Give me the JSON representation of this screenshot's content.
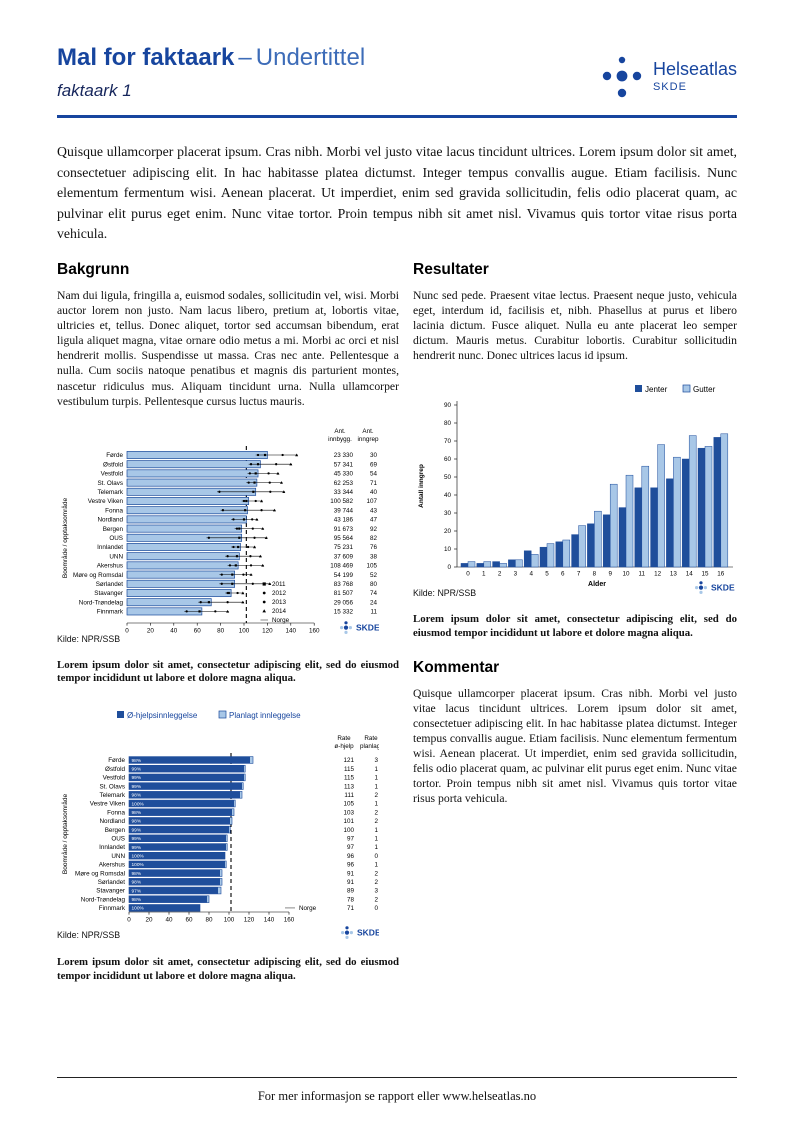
{
  "page": {
    "header": {
      "title_main": "Mal for faktaark",
      "title_sep": "–",
      "title_sub": "Undertittel",
      "subtitle": "faktaark 1",
      "logo": {
        "name": "Helseatlas",
        "org": "SKDE"
      }
    },
    "intro": "Quisque ullamcorper placerat ipsum. Cras nibh. Morbi vel justo vitae lacus tincidunt ultrices. Lorem ipsum dolor sit amet, consectetuer adipiscing elit. In hac habitasse platea dictumst. Integer tempus convallis augue. Etiam facilisis. Nunc elementum fermentum wisi. Aenean placerat. Ut imperdiet, enim sed gravida sollicitudin, felis odio placerat quam, ac pulvinar elit purus eget enim. Nunc vitae tortor. Proin tempus nibh sit amet nisl. Vivamus quis tortor vitae risus porta vehicula.",
    "sections": {
      "bakgrunn": {
        "heading": "Bakgrunn",
        "body": "Nam dui ligula, fringilla a, euismod sodales, sollicitudin vel, wisi. Morbi auctor lorem non justo. Nam lacus libero, pretium at, lobortis vitae, ultricies et, tellus. Donec aliquet, tortor sed accumsan bibendum, erat ligula aliquet magna, vitae ornare odio metus a mi. Morbi ac orci et nisl hendrerit mollis. Suspendisse ut massa. Cras nec ante. Pellentesque a nulla. Cum sociis natoque penatibus et magnis dis parturient montes, nascetur ridiculus mus. Aliquam tincidunt urna. Nulla ullamcorper vestibulum turpis. Pellentesque cursus luctus mauris."
      },
      "resultater": {
        "heading": "Resultater",
        "body": "Nunc sed pede. Praesent vitae lectus. Praesent neque justo, vehicula eget, interdum id, facilisis et, nibh. Phasellus at purus et libero lacinia dictum. Fusce aliquet. Nulla eu ante placerat leo semper dictum. Mauris metus. Curabitur lobortis. Curabitur sollicitudin hendrerit nunc. Donec ultrices lacus id ipsum."
      },
      "kommentar": {
        "heading": "Kommentar",
        "body": "Quisque ullamcorper placerat ipsum. Cras nibh. Morbi vel justo vitae lacus tincidunt ultrices. Lorem ipsum dolor sit amet, consectetuer adipiscing elit. In hac habitasse platea dictumst. Integer tempus convallis augue. Etiam facilisis. Nunc elementum fermentum wisi. Aenean placerat. Ut imperdiet, enim sed gravida sollicitudin, felis odio placerat quam, ac pulvinar elit purus eget enim. Nunc vitae tortor. Proin tempus nibh sit amet nisl. Vivamus quis tortor vitae risus porta vehicula."
      }
    },
    "figure_caption": "Lorem ipsum dolor sit amet, consectetur adipiscing elit, sed do eiusmod tempor incididunt ut labore et dolore magna aliqua.",
    "footer": "For mer informasjon se rapport eller www.helseatlas.no"
  },
  "colors": {
    "brand": "#17459e",
    "bar_dark": "#1f4e9b",
    "bar_light": "#a8c7e7",
    "bar_border": "#1b4a9b"
  },
  "chart_data": [
    {
      "id": "rate-by-area",
      "type": "bar",
      "orientation": "horizontal",
      "ylabel": "Boområde / opptaksområde",
      "xlim": [
        0,
        160
      ],
      "xticks": [
        0,
        20,
        40,
        60,
        80,
        100,
        120,
        140,
        160
      ],
      "norge_line": 102,
      "col_headers": [
        [
          "Ant.",
          "innbygg."
        ],
        [
          "Ant.",
          "inngrep"
        ]
      ],
      "legend": [
        {
          "marker": "square",
          "label": "2011"
        },
        {
          "marker": "circle",
          "label": "2012"
        },
        {
          "marker": "circle",
          "label": "2013"
        },
        {
          "marker": "triangle",
          "label": "2014"
        },
        {
          "marker": "dash",
          "label": "Norge"
        }
      ],
      "source": "Kilde: NPR/SSB",
      "rows": [
        {
          "label": "Førde",
          "value": 120,
          "ci": [
            110,
            146
          ],
          "innbygg": "23 330",
          "inngrep": "30"
        },
        {
          "label": "Østfold",
          "value": 114,
          "ci": [
            104,
            141
          ],
          "innbygg": "57 341",
          "inngrep": "69"
        },
        {
          "label": "Vestfold",
          "value": 112,
          "ci": [
            103,
            130
          ],
          "innbygg": "45 330",
          "inngrep": "54"
        },
        {
          "label": "St. Olavs",
          "value": 111,
          "ci": [
            102,
            133
          ],
          "innbygg": "62 253",
          "inngrep": "71"
        },
        {
          "label": "Telemark",
          "value": 110,
          "ci": [
            77,
            135
          ],
          "innbygg": "33 344",
          "inngrep": "40"
        },
        {
          "label": "Vestre Viken",
          "value": 104,
          "ci": [
            98,
            116
          ],
          "innbygg": "100 582",
          "inngrep": "107"
        },
        {
          "label": "Fonna",
          "value": 103,
          "ci": [
            80,
            127
          ],
          "innbygg": "39 744",
          "inngrep": "43"
        },
        {
          "label": "Nordland",
          "value": 102,
          "ci": [
            89,
            112
          ],
          "innbygg": "43 186",
          "inngrep": "47"
        },
        {
          "label": "Bergen",
          "value": 98,
          "ci": [
            92,
            117
          ],
          "innbygg": "91 673",
          "inngrep": "92"
        },
        {
          "label": "OUS",
          "value": 98,
          "ci": [
            68,
            120
          ],
          "innbygg": "95 564",
          "inngrep": "82"
        },
        {
          "label": "Innlandet",
          "value": 97,
          "ci": [
            89,
            110
          ],
          "innbygg": "75 231",
          "inngrep": "76"
        },
        {
          "label": "UNN",
          "value": 96,
          "ci": [
            84,
            115
          ],
          "innbygg": "37 609",
          "inngrep": "38"
        },
        {
          "label": "Akershus",
          "value": 95,
          "ci": [
            86,
            117
          ],
          "innbygg": "108 469",
          "inngrep": "105"
        },
        {
          "label": "Møre og Romsdal",
          "value": 92,
          "ci": [
            79,
            107
          ],
          "innbygg": "54 199",
          "inngrep": "52"
        },
        {
          "label": "Sørlandet",
          "value": 92,
          "ci": [
            79,
            123
          ],
          "innbygg": "83 768",
          "inngrep": "80"
        },
        {
          "label": "Stavanger",
          "value": 89,
          "ci": [
            84,
            100
          ],
          "innbygg": "81 507",
          "inngrep": "74"
        },
        {
          "label": "Nord-Trøndelag",
          "value": 72,
          "ci": [
            61,
            100
          ],
          "innbygg": "29 056",
          "inngrep": "24"
        },
        {
          "label": "Finnmark",
          "value": 64,
          "ci": [
            49,
            87
          ],
          "innbygg": "15 332",
          "inngrep": "11"
        }
      ]
    },
    {
      "id": "age-gender",
      "type": "bar",
      "grouped": true,
      "categories": [
        "0",
        "1",
        "2",
        "3",
        "4",
        "5",
        "6",
        "7",
        "8",
        "9",
        "10",
        "11",
        "12",
        "13",
        "14",
        "15",
        "16"
      ],
      "series": [
        {
          "name": "Jenter",
          "color": "dark",
          "values": [
            2,
            2,
            3,
            4,
            9,
            11,
            14,
            18,
            24,
            29,
            33,
            44,
            44,
            49,
            60,
            66,
            72
          ]
        },
        {
          "name": "Gutter",
          "color": "light",
          "values": [
            3,
            3,
            2,
            4,
            7,
            13,
            15,
            23,
            31,
            46,
            51,
            56,
            68,
            61,
            73,
            67,
            74
          ]
        }
      ],
      "ylabel": "Antall inngrep",
      "xlabel": "Alder",
      "ylim": [
        0,
        90
      ],
      "yticks": [
        0,
        10,
        20,
        30,
        40,
        50,
        60,
        70,
        80,
        90
      ],
      "source": "Kilde: NPR/SSB"
    },
    {
      "id": "admission-type",
      "type": "bar",
      "orientation": "horizontal",
      "stacked": true,
      "legend": [
        {
          "label": "Ø-hjelpsinnleggelse",
          "color": "dark"
        },
        {
          "label": "Planlagt innleggelse",
          "color": "light"
        }
      ],
      "ylabel": "Boområde / opptaksområde",
      "col_headers": [
        [
          "Rate",
          "ø-hjelp"
        ],
        [
          "Rate",
          "planlagt"
        ]
      ],
      "xlim": [
        0,
        160
      ],
      "xticks": [
        0,
        20,
        40,
        60,
        80,
        100,
        120,
        140,
        160
      ],
      "norge_line": 102,
      "norge_legend": "Norge",
      "source": "Kilde: NPR/SSB",
      "rows": [
        {
          "label": "Førde",
          "pct": "98%",
          "ohjelp": 121,
          "planlagt": 3
        },
        {
          "label": "Østfold",
          "pct": "99%",
          "ohjelp": 115,
          "planlagt": 1
        },
        {
          "label": "Vestfold",
          "pct": "99%",
          "ohjelp": 115,
          "planlagt": 1
        },
        {
          "label": "St. Olavs",
          "pct": "99%",
          "ohjelp": 113,
          "planlagt": 1
        },
        {
          "label": "Telemark",
          "pct": "98%",
          "ohjelp": 111,
          "planlagt": 2
        },
        {
          "label": "Vestre Viken",
          "pct": "100%",
          "ohjelp": 105,
          "planlagt": 1
        },
        {
          "label": "Fonna",
          "pct": "98%",
          "ohjelp": 103,
          "planlagt": 2
        },
        {
          "label": "Nordland",
          "pct": "98%",
          "ohjelp": 101,
          "planlagt": 2
        },
        {
          "label": "Bergen",
          "pct": "99%",
          "ohjelp": 100,
          "planlagt": 1
        },
        {
          "label": "OUS",
          "pct": "99%",
          "ohjelp": 97,
          "planlagt": 1
        },
        {
          "label": "Innlandet",
          "pct": "99%",
          "ohjelp": 97,
          "planlagt": 1
        },
        {
          "label": "UNN",
          "pct": "100%",
          "ohjelp": 96,
          "planlagt": 0
        },
        {
          "label": "Akershus",
          "pct": "100%",
          "ohjelp": 96,
          "planlagt": 1
        },
        {
          "label": "Møre og Romsdal",
          "pct": "98%",
          "ohjelp": 91,
          "planlagt": 2
        },
        {
          "label": "Sørlandet",
          "pct": "98%",
          "ohjelp": 91,
          "planlagt": 2
        },
        {
          "label": "Stavanger",
          "pct": "97%",
          "ohjelp": 89,
          "planlagt": 3
        },
        {
          "label": "Nord-Trøndelag",
          "pct": "98%",
          "ohjelp": 78,
          "planlagt": 2
        },
        {
          "label": "Finnmark",
          "pct": "100%",
          "ohjelp": 71,
          "planlagt": 0
        }
      ]
    }
  ]
}
